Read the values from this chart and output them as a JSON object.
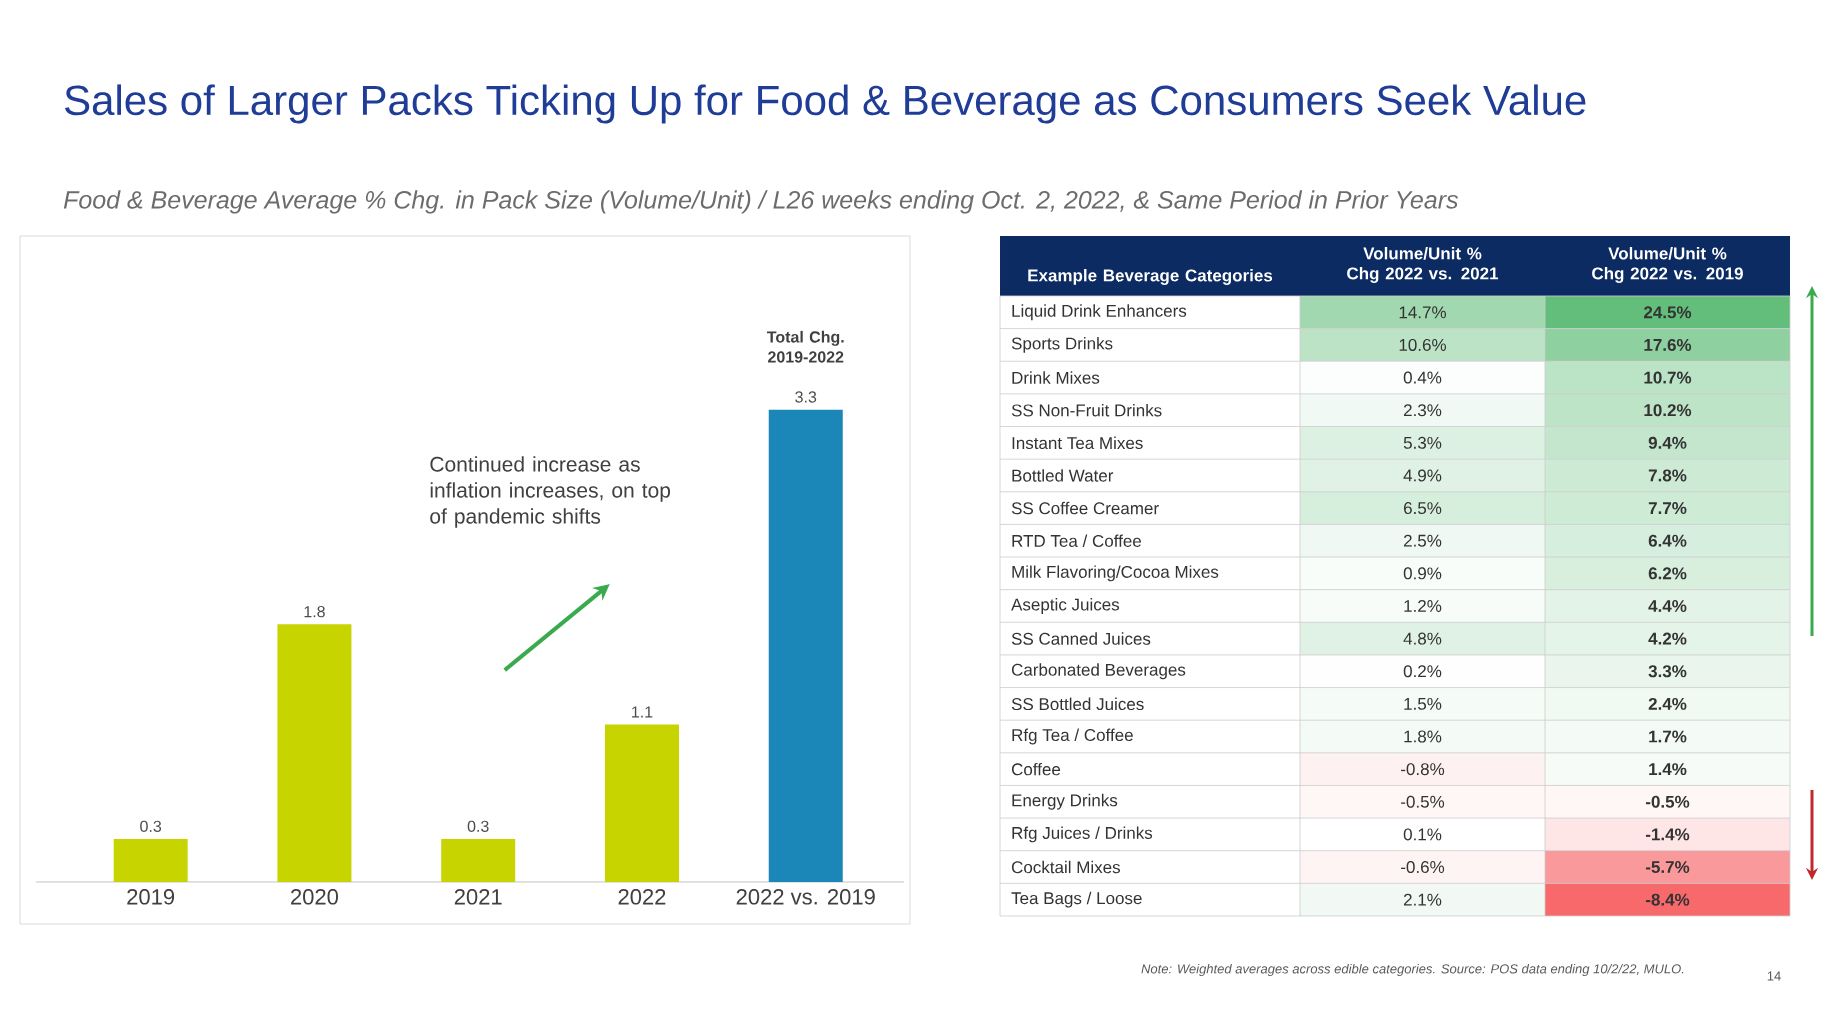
{
  "chart_data": [
    {
      "type": "bar",
      "title": "Sales of Larger Packs Ticking Up for Food & Beverage as Consumers Seek Value",
      "subtitle": "Food & Beverage Average % Chg. in Pack Size (Volume/Unit) / L26 weeks ending Oct. 2, 2022, & Same Period in Prior Years",
      "categories": [
        "2019",
        "2020",
        "2021",
        "2022",
        "2022 vs. 2019"
      ],
      "values": [
        0.3,
        1.8,
        0.3,
        1.1,
        3.3
      ],
      "colors": [
        "#c8d400",
        "#c8d400",
        "#c8d400",
        "#c8d400",
        "#1b86b8"
      ],
      "data_labels": true,
      "annotations": [
        "Total Chg. 2019-2022",
        "Continued increase as inflation increases, on top of pandemic shifts"
      ]
    },
    {
      "type": "heatmap",
      "ylabel": "Example Beverage Categories",
      "categories": [
        "Volume/Unit % Chg 2022 vs. 2021",
        "Volume/Unit % Chg 2022 vs. 2019"
      ],
      "y_categories": [
        "Liquid Drink Enhancers",
        "Sports Drinks",
        "Drink Mixes",
        "SS Non-Fruit Drinks",
        "Instant Tea Mixes",
        "Bottled Water",
        "SS Coffee Creamer",
        "RTD Tea / Coffee",
        "Milk Flavoring/Cocoa Mixes",
        "Aseptic Juices",
        "SS Canned Juices",
        "Carbonated Beverages",
        "SS Bottled Juices",
        "Rfg Tea / Coffee",
        "Coffee",
        "Energy Drinks",
        "Rfg Juices / Drinks",
        "Cocktail Mixes",
        "Tea Bags / Loose"
      ],
      "cells": [
        [
          14.7,
          24.5
        ],
        [
          10.6,
          17.6
        ],
        [
          0.4,
          10.7
        ],
        [
          2.3,
          10.2
        ],
        [
          5.3,
          9.4
        ],
        [
          4.9,
          7.8
        ],
        [
          6.5,
          7.7
        ],
        [
          2.5,
          6.4
        ],
        [
          0.9,
          6.2
        ],
        [
          1.2,
          4.4
        ],
        [
          4.8,
          4.2
        ],
        [
          0.2,
          3.3
        ],
        [
          1.5,
          2.4
        ],
        [
          1.8,
          1.7
        ],
        [
          -0.8,
          1.4
        ],
        [
          -0.5,
          -0.5
        ],
        [
          0.1,
          -1.4
        ],
        [
          -0.6,
          -5.7
        ],
        [
          2.1,
          -8.4
        ]
      ],
      "cell_labels": [
        [
          "14.7%",
          "24.5%"
        ],
        [
          "10.6%",
          "17.6%"
        ],
        [
          "0.4%",
          "10.7%"
        ],
        [
          "2.3%",
          "10.2%"
        ],
        [
          "5.3%",
          "9.4%"
        ],
        [
          "4.9%",
          "7.8%"
        ],
        [
          "6.5%",
          "7.7%"
        ],
        [
          "2.5%",
          "6.4%"
        ],
        [
          "0.9%",
          "6.2%"
        ],
        [
          "1.2%",
          "4.4%"
        ],
        [
          "4.8%",
          "4.2%"
        ],
        [
          "0.2%",
          "3.3%"
        ],
        [
          "1.5%",
          "2.4%"
        ],
        [
          "1.8%",
          "1.7%"
        ],
        [
          "-0.8%",
          "1.4%"
        ],
        [
          "-0.5%",
          "-0.5%"
        ],
        [
          "0.1%",
          "-1.4%"
        ],
        [
          "-0.6%",
          "-5.7%"
        ],
        [
          "2.1%",
          "-8.4%"
        ]
      ],
      "annotations": [
        "Note: Weighted averages across edible categories. Source: POS data ending 10/2/22, MULO.",
        "14"
      ]
    }
  ]
}
